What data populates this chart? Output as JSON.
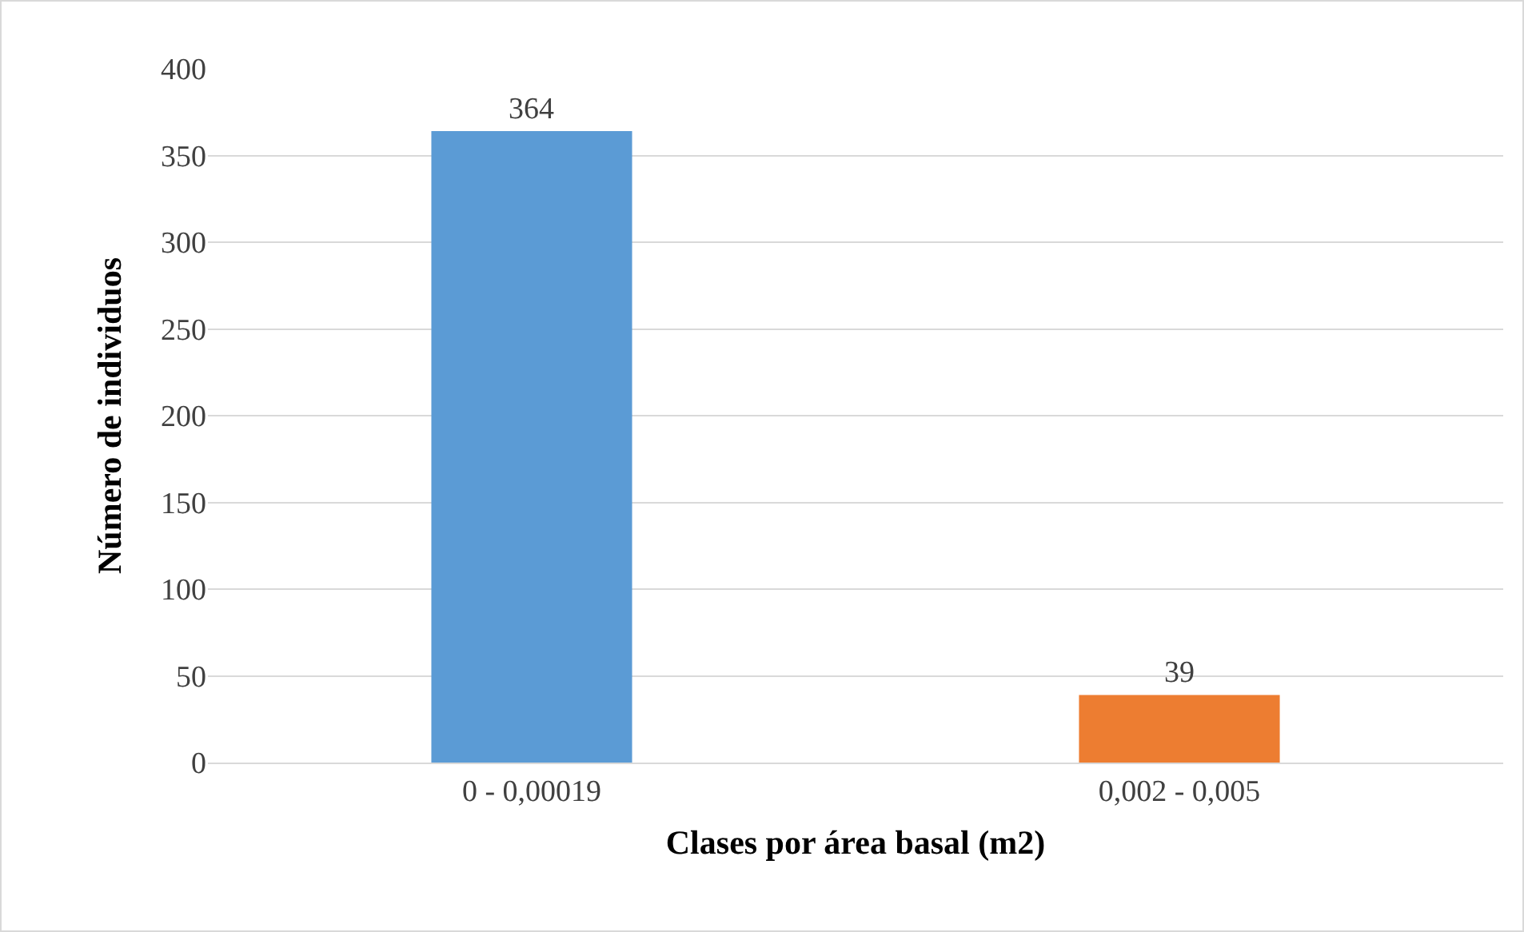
{
  "chart_data": {
    "type": "bar",
    "xlabel": "Clases por área basal (m2)",
    "ylabel": "Número de individuos",
    "categories": [
      "0 - 0,00019",
      "0,002 - 0,005"
    ],
    "values": [
      364,
      39
    ],
    "colors": [
      "#5b9bd5",
      "#ed7d31"
    ],
    "ylim": [
      0,
      400
    ],
    "yticks": [
      0,
      50,
      100,
      150,
      200,
      250,
      300,
      350,
      400
    ],
    "grid": "y",
    "data_labels": true
  }
}
